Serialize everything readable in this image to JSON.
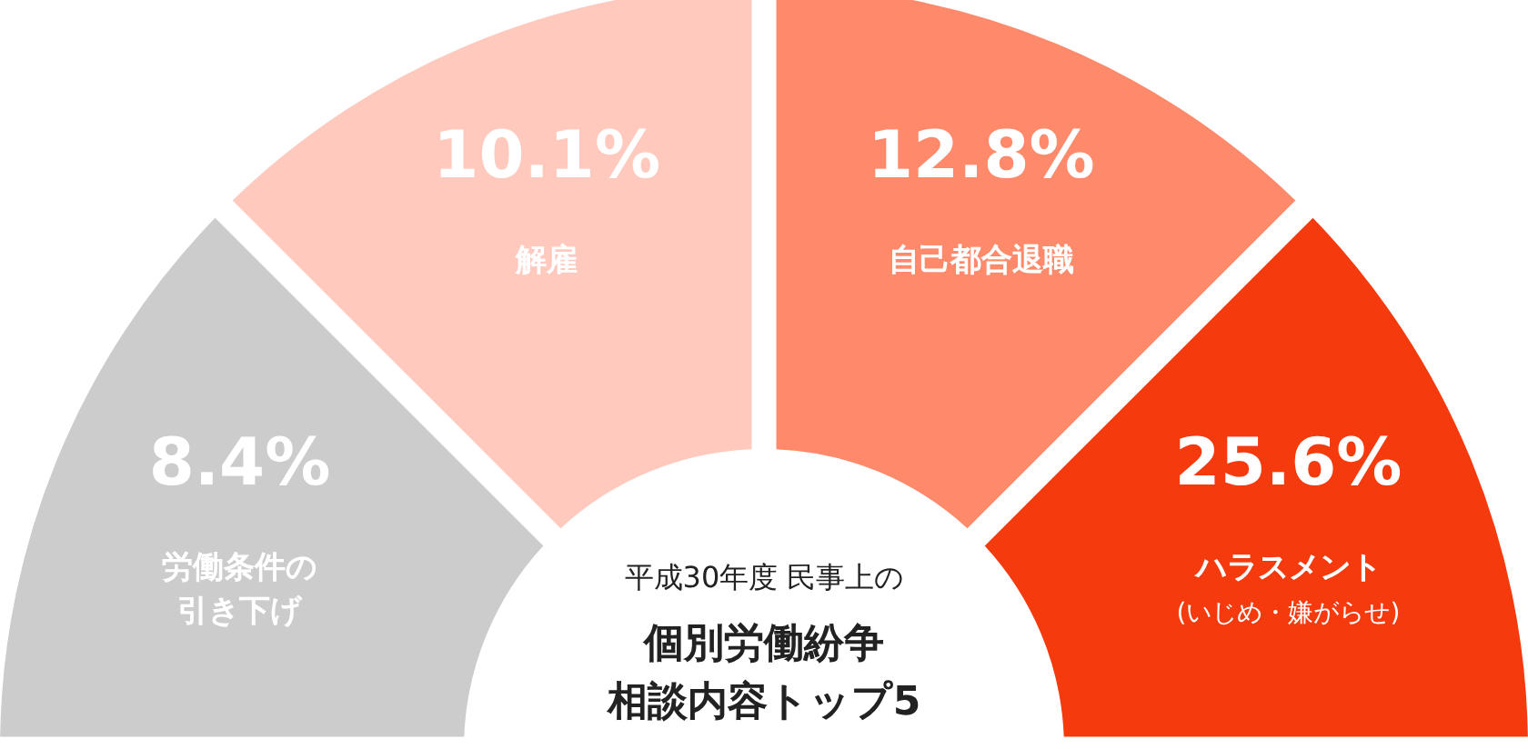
{
  "chart_data": {
    "type": "other",
    "subtitle": "平成30年度 民事上の",
    "title": "個別労働紛争相談内容トップ5",
    "categories": [
      "労働条件の引き下げ",
      "解雇",
      "自己都合退職",
      "ハラスメント(いじめ・嫌がらせ)"
    ],
    "values": [
      8.4,
      10.1,
      12.8,
      25.6
    ],
    "value_labels": [
      "8.4%",
      "10.1%",
      "12.8%",
      "25.6%"
    ],
    "colors": [
      "#cccccc",
      "#ffc9be",
      "#fe8a6b",
      "#f53a0e"
    ]
  }
}
